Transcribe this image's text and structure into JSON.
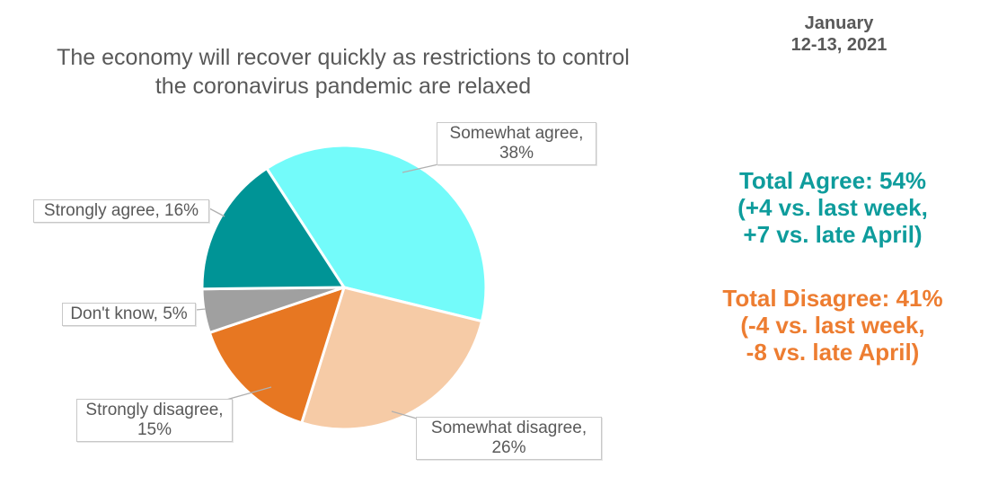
{
  "title": {
    "line1": "The economy will recover quickly as restrictions to control",
    "line2": "the coronavirus pandemic are relaxed",
    "color": "#595959"
  },
  "date_note": {
    "line1": "January",
    "line2": "12-13, 2021",
    "color": "#595959"
  },
  "summary": {
    "agree": {
      "line1": "Total Agree: 54%",
      "line2": "(+4 vs. last week,",
      "line3": "+7 vs. late April)",
      "color": "#0E9C9C"
    },
    "disagree": {
      "line1": "Total Disagree: 41%",
      "line2": "(-4 vs. last week,",
      "line3": "-8 vs. late April)",
      "color": "#ED7D31"
    }
  },
  "chart_data": {
    "type": "pie",
    "title": "The economy will recover quickly as restrictions to control the coronavirus pandemic are relaxed",
    "date": "January 12-13, 2021",
    "start_angle_deg": -33,
    "direction": "clockwise",
    "separator_color": "#ffffff",
    "legend": "none (callout data labels)",
    "slices": [
      {
        "label": "Somewhat agree",
        "value": 38,
        "color": "#73FBFA"
      },
      {
        "label": "Somewhat disagree",
        "value": 26,
        "color": "#F6CBA6"
      },
      {
        "label": "Strongly disagree",
        "value": 15,
        "color": "#E77722"
      },
      {
        "label": "Don't know",
        "value": 5,
        "color": "#A0A0A0"
      },
      {
        "label": "Strongly agree",
        "value": 16,
        "color": "#009496"
      }
    ],
    "callouts": {
      "somewhat_agree": {
        "line1": "Somewhat agree,",
        "line2": "38%"
      },
      "strongly_agree": {
        "line1": "Strongly agree, 16%"
      },
      "dont_know": {
        "line1": "Don't know, 5%"
      },
      "strongly_disagree": {
        "line1": "Strongly disagree,",
        "line2": "15%"
      },
      "somewhat_disagree": {
        "line1": "Somewhat disagree,",
        "line2": "26%"
      }
    },
    "annotations": [
      "Total Agree: 54% (+4 vs. last week, +7 vs. late April)",
      "Total Disagree: 41% (-4 vs. last week, -8 vs. late April)"
    ]
  }
}
